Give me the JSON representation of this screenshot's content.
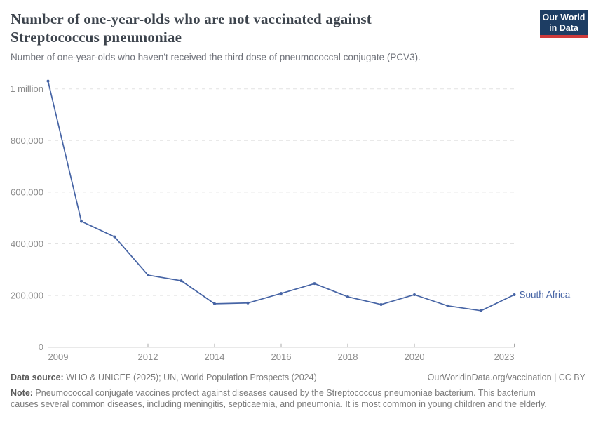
{
  "header": {
    "title": "Number of one-year-olds who are not vaccinated against Streptococcus pneumoniae",
    "subtitle": "Number of one-year-olds who haven't received the third dose of pneumococcal conjugate (PCV3).",
    "logo": {
      "line1": "Our World",
      "line2": "in Data"
    }
  },
  "chart_data": {
    "type": "line",
    "title": "Number of one-year-olds who are not vaccinated against Streptococcus pneumoniae",
    "x": [
      2009,
      2010,
      2011,
      2012,
      2013,
      2014,
      2015,
      2016,
      2017,
      2018,
      2019,
      2020,
      2021,
      2022,
      2023
    ],
    "series": [
      {
        "name": "South Africa",
        "color": "#4664a5",
        "values": [
          1030000,
          487000,
          427000,
          279000,
          257000,
          168000,
          171000,
          208000,
          246000,
          195000,
          165000,
          203000,
          160000,
          141000,
          203000
        ]
      }
    ],
    "xlabel": "",
    "ylabel": "",
    "ylim": [
      0,
      1040000
    ],
    "xlim": [
      2009,
      2023
    ],
    "grid": "horizontal-dashed",
    "legend": "inline-end-label",
    "entity_label": "South Africa",
    "yticks": [
      {
        "value": 0,
        "label": "0"
      },
      {
        "value": 200000,
        "label": "200,000"
      },
      {
        "value": 400000,
        "label": "400,000"
      },
      {
        "value": 600000,
        "label": "600,000"
      },
      {
        "value": 800000,
        "label": "800,000"
      },
      {
        "value": 1000000,
        "label": "1 million"
      }
    ],
    "xticks": [
      {
        "value": 2009,
        "label": "2009"
      },
      {
        "value": 2012,
        "label": "2012"
      },
      {
        "value": 2014,
        "label": "2014"
      },
      {
        "value": 2016,
        "label": "2016"
      },
      {
        "value": 2018,
        "label": "2018"
      },
      {
        "value": 2020,
        "label": "2020"
      },
      {
        "value": 2023,
        "label": "2023"
      }
    ],
    "colors": {
      "line": "#4664a5",
      "grid": "#e2e2e2",
      "axis": "#a8a8a8",
      "tick_text": "#8c8c8c"
    }
  },
  "footer": {
    "datasource_label": "Data source:",
    "datasource": " WHO & UNICEF (2025); UN, World Population Prospects (2024)",
    "link": "OurWorldinData.org/vaccination | CC BY",
    "note_label": "Note:",
    "note_lines": [
      " Pneumococcal conjugate vaccines protect against diseases caused by the Streptococcus pneumoniae bacterium. This bacterium",
      "causes several common diseases, including meningitis, septicaemia, and pneumonia. It is most common in young children and the elderly."
    ]
  }
}
